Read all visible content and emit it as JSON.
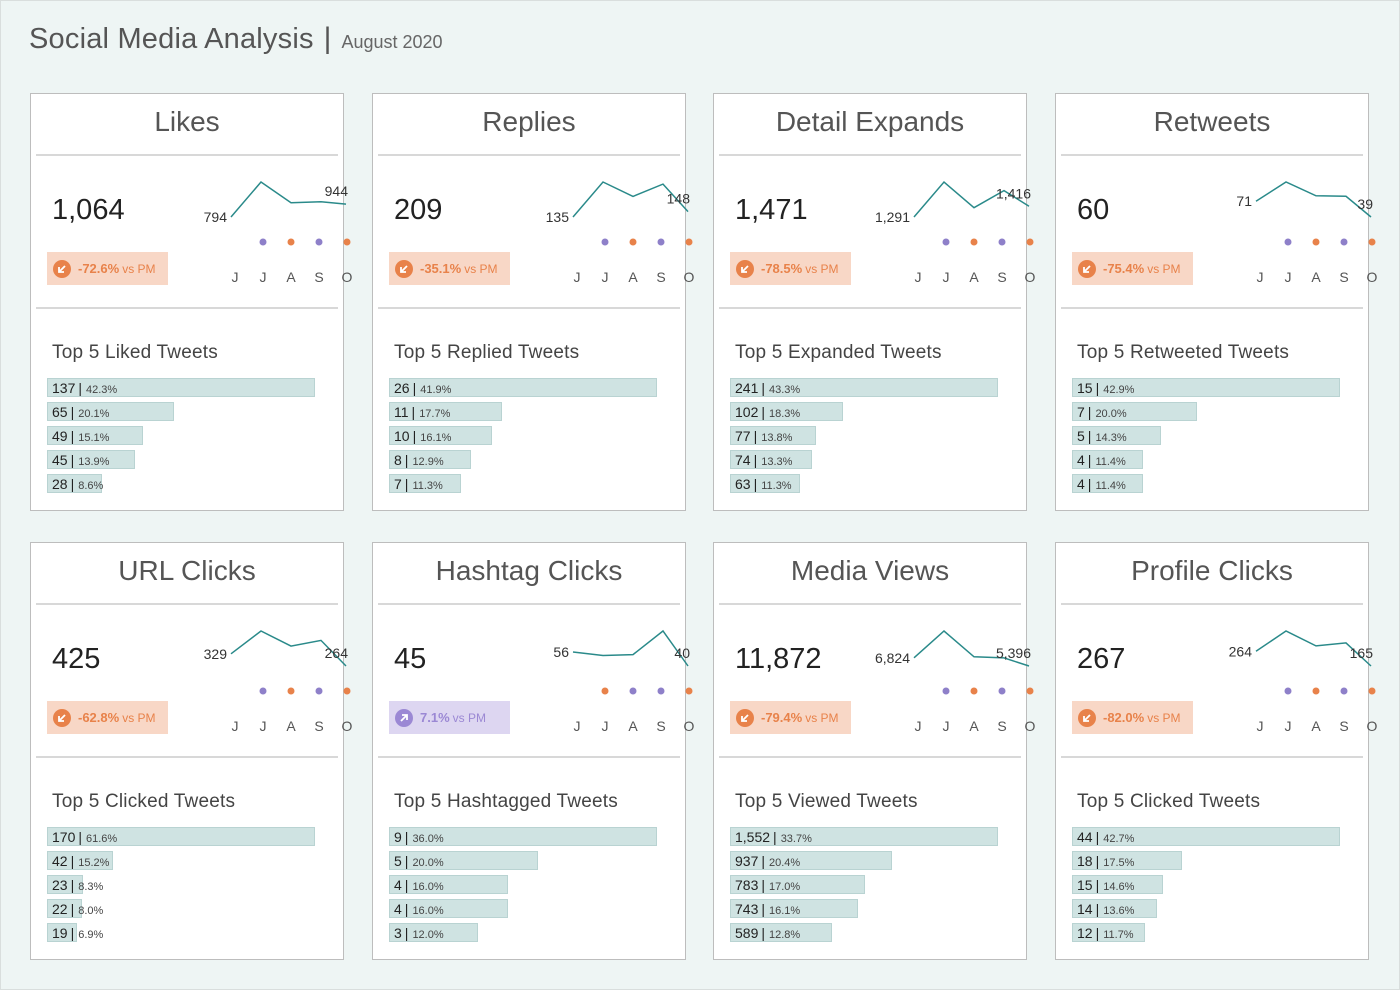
{
  "header": {
    "title": "Social Media Analysis",
    "separator": "|",
    "subtitle": "August 2020"
  },
  "colors": {
    "spark_line": "#2a8a8a",
    "dot_purple": "#8e80c9",
    "dot_orange": "#e8824a",
    "neg_badge_bg": "#f8d7c6",
    "neg_badge_text": "#e8824a",
    "pos_badge_bg": "#ddd6f1",
    "pos_badge_text": "#9b88d4",
    "bar_fill": "#cfe3e2"
  },
  "months": [
    "J",
    "J",
    "A",
    "S",
    "O"
  ],
  "cards": [
    {
      "title": "Likes",
      "value": "1,064",
      "change": "-72.6%",
      "vs": "vs PM",
      "direction": "down",
      "spark": {
        "start_label": "794",
        "end_label": "944",
        "series": [
          794,
          1200,
          960,
          970,
          944
        ]
      },
      "top_title": "Top 5 Liked Tweets",
      "top": [
        {
          "value": "137",
          "pct": "42.3%"
        },
        {
          "value": "65",
          "pct": "20.1%"
        },
        {
          "value": "49",
          "pct": "15.1%"
        },
        {
          "value": "45",
          "pct": "13.9%"
        },
        {
          "value": "28",
          "pct": "8.6%"
        }
      ]
    },
    {
      "title": "Replies",
      "value": "209",
      "change": "-35.1%",
      "vs": "vs PM",
      "direction": "down",
      "spark": {
        "start_label": "135",
        "end_label": "148",
        "series": [
          135,
          220,
          185,
          215,
          148
        ]
      },
      "top_title": "Top 5 Replied Tweets",
      "top": [
        {
          "value": "26",
          "pct": "41.9%"
        },
        {
          "value": "11",
          "pct": "17.7%"
        },
        {
          "value": "10",
          "pct": "16.1%"
        },
        {
          "value": "8",
          "pct": "12.9%"
        },
        {
          "value": "7",
          "pct": "11.3%"
        }
      ]
    },
    {
      "title": "Detail Expands",
      "value": "1,471",
      "change": "-78.5%",
      "vs": "vs PM",
      "direction": "down",
      "spark": {
        "start_label": "1,291",
        "end_label": "1,416",
        "series": [
          1291,
          1700,
          1400,
          1600,
          1416
        ]
      },
      "top_title": "Top 5 Expanded Tweets",
      "top": [
        {
          "value": "241",
          "pct": "43.3%"
        },
        {
          "value": "102",
          "pct": "18.3%"
        },
        {
          "value": "77",
          "pct": "13.8%"
        },
        {
          "value": "74",
          "pct": "13.3%"
        },
        {
          "value": "63",
          "pct": "11.3%"
        }
      ]
    },
    {
      "title": "Retweets",
      "value": "60",
      "change": "-75.4%",
      "vs": "vs PM",
      "direction": "down",
      "spark": {
        "start_label": "71",
        "end_label": "39",
        "series": [
          71,
          110,
          82,
          81,
          39
        ]
      },
      "top_title": "Top 5 Retweeted Tweets",
      "top": [
        {
          "value": "15",
          "pct": "42.9%"
        },
        {
          "value": "7",
          "pct": "20.0%"
        },
        {
          "value": "5",
          "pct": "14.3%"
        },
        {
          "value": "4",
          "pct": "11.4%"
        },
        {
          "value": "4",
          "pct": "11.4%"
        }
      ]
    },
    {
      "title": "URL Clicks",
      "value": "425",
      "change": "-62.8%",
      "vs": "vs PM",
      "direction": "down",
      "spark": {
        "start_label": "329",
        "end_label": "264",
        "series": [
          329,
          450,
          370,
          400,
          264
        ]
      },
      "top_title": "Top 5 Clicked Tweets",
      "top": [
        {
          "value": "170",
          "pct": "61.6%"
        },
        {
          "value": "42",
          "pct": "15.2%"
        },
        {
          "value": "23",
          "pct": "8.3%"
        },
        {
          "value": "22",
          "pct": "8.0%"
        },
        {
          "value": "19",
          "pct": "6.9%"
        }
      ]
    },
    {
      "title": "Hashtag Clicks",
      "value": "45",
      "change": "7.1%",
      "vs": "vs PM",
      "direction": "up",
      "spark": {
        "start_label": "56",
        "end_label": "40",
        "series": [
          56,
          52,
          53,
          80,
          40
        ]
      },
      "top_title": "Top 5 Hashtagged Tweets",
      "top": [
        {
          "value": "9",
          "pct": "36.0%"
        },
        {
          "value": "5",
          "pct": "20.0%"
        },
        {
          "value": "4",
          "pct": "16.0%"
        },
        {
          "value": "4",
          "pct": "16.0%"
        },
        {
          "value": "3",
          "pct": "12.0%"
        }
      ]
    },
    {
      "title": "Media Views",
      "value": "11,872",
      "change": "-79.4%",
      "vs": "vs PM",
      "direction": "down",
      "spark": {
        "start_label": "6,824",
        "end_label": "5,396",
        "series": [
          6824,
          11500,
          7000,
          6800,
          5396
        ]
      },
      "top_title": "Top 5 Viewed Tweets",
      "top": [
        {
          "value": "1,552",
          "pct": "33.7%"
        },
        {
          "value": "937",
          "pct": "20.4%"
        },
        {
          "value": "783",
          "pct": "17.0%"
        },
        {
          "value": "743",
          "pct": "16.1%"
        },
        {
          "value": "589",
          "pct": "12.8%"
        }
      ]
    },
    {
      "title": "Profile Clicks",
      "value": "267",
      "change": "-82.0%",
      "vs": "vs PM",
      "direction": "down",
      "spark": {
        "start_label": "264",
        "end_label": "165",
        "series": [
          264,
          400,
          300,
          320,
          165
        ]
      },
      "top_title": "Top 5 Clicked Tweets",
      "top": [
        {
          "value": "44",
          "pct": "42.7%"
        },
        {
          "value": "18",
          "pct": "17.5%"
        },
        {
          "value": "15",
          "pct": "14.6%"
        },
        {
          "value": "14",
          "pct": "13.6%"
        },
        {
          "value": "12",
          "pct": "11.7%"
        }
      ]
    }
  ]
}
